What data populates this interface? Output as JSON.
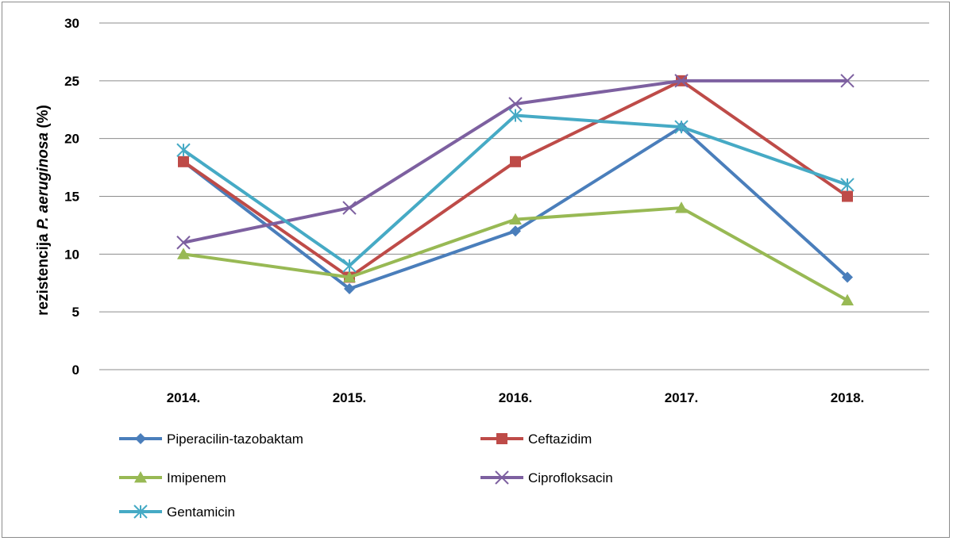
{
  "chart_data": {
    "type": "line",
    "categories": [
      "2014.",
      "2015.",
      "2016.",
      "2017.",
      "2018."
    ],
    "ylabel": {
      "prefix": "rezistencija ",
      "italic": "P. aeruginosa",
      "suffix": " (%)"
    },
    "ylim": [
      0,
      30
    ],
    "yticks": [
      0,
      5,
      10,
      15,
      20,
      25,
      30
    ],
    "grid": true,
    "legend_position": "bottom",
    "series": [
      {
        "name": "Piperacilin-tazobaktam",
        "values": [
          18,
          7,
          12,
          21,
          8
        ],
        "color": "#4a7ebb",
        "marker": "diamond"
      },
      {
        "name": "Ceftazidim",
        "values": [
          18,
          8,
          18,
          25,
          15
        ],
        "color": "#be4b48",
        "marker": "square"
      },
      {
        "name": "Imipenem",
        "values": [
          10,
          8,
          13,
          14,
          6
        ],
        "color": "#98b954",
        "marker": "triangle"
      },
      {
        "name": "Ciprofloksacin",
        "values": [
          11,
          14,
          23,
          25,
          25
        ],
        "color": "#7d60a0",
        "marker": "x"
      },
      {
        "name": "Gentamicin",
        "values": [
          19,
          9,
          22,
          21,
          16
        ],
        "color": "#46aac5",
        "marker": "star"
      }
    ]
  }
}
